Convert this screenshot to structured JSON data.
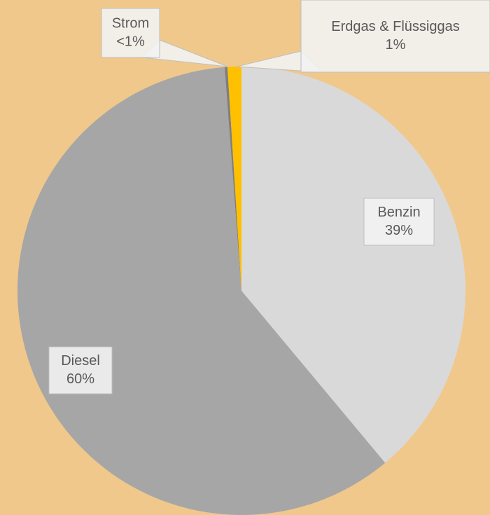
{
  "chart_data": {
    "type": "pie",
    "categories": [
      "Benzin",
      "Diesel",
      "Strom",
      "Erdgas & Flüssiggas"
    ],
    "values": [
      39,
      60,
      0.2,
      1
    ],
    "value_labels": [
      "39%",
      "60%",
      "<1%",
      "1%"
    ],
    "colors": [
      "#d9d9d9",
      "#a6a6a6",
      "#7f7f7f",
      "#ffc000"
    ]
  }
}
